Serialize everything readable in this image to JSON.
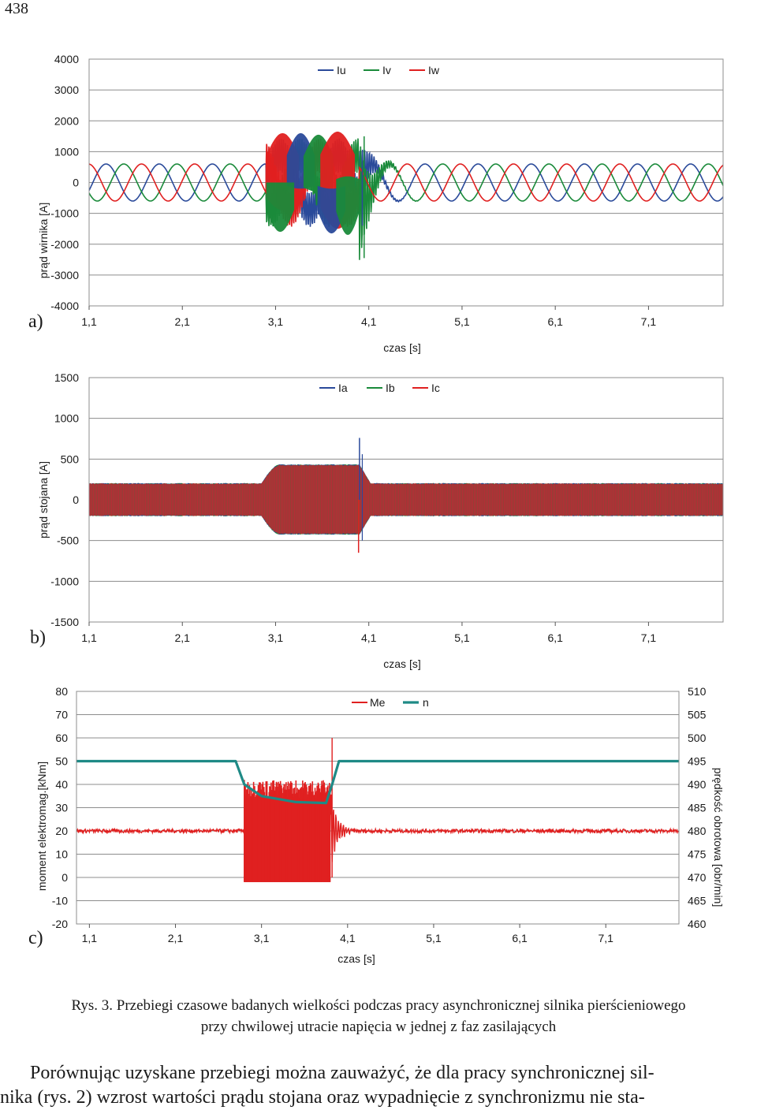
{
  "page_number": "438",
  "panel_labels": [
    "a)",
    "b)",
    "c)"
  ],
  "caption": {
    "line1": "Rys. 3. Przebiegi czasowe badanych wielkości podczas pracy asynchronicznej silnika pierścieniowego",
    "line2": "przy chwilowej utracie napięcia w jednej z faz zasilających"
  },
  "body_text": {
    "line1": "Porównując uzyskane przebiegi można zauważyć, że dla pracy synchronicznej sil-",
    "line2": "nika (rys. 2) wzrost wartości prądu stojana oraz wypadnięcie z synchronizmu nie sta-"
  },
  "chart_data": [
    {
      "type": "line",
      "id": "a",
      "xlabel": "czas [s]",
      "ylabel": "prąd wirnika [A]",
      "ylim": [
        -4000,
        4000
      ],
      "yticks": [
        "4000",
        "3000",
        "2000",
        "1000",
        "0",
        "-1000",
        "-2000",
        "-3000",
        "-4000"
      ],
      "xlim": [
        1.1,
        7.9
      ],
      "xticks": [
        "1,1",
        "2,1",
        "3,1",
        "4,1",
        "5,1",
        "6,1",
        "7,1"
      ],
      "grid": "horizontal",
      "legend": "top-center",
      "series": [
        {
          "name": "Iu",
          "color": "#2a4a9a",
          "phase_deg": 0
        },
        {
          "name": "Iv",
          "color": "#1a8a3a",
          "phase_deg": 120
        },
        {
          "name": "Iw",
          "color": "#e02020",
          "phase_deg": 240
        }
      ],
      "signal": {
        "steady_amplitude": 600,
        "period_s": 0.57,
        "disturbance_start": 3.0,
        "disturbance_end": 4.0,
        "disturbance_amplitude": 1600,
        "transient_peak": 1500,
        "transient_min": -2450
      }
    },
    {
      "type": "line",
      "id": "b",
      "xlabel": "czas [s]",
      "ylabel": "prąd stojana [A]",
      "ylim": [
        -1500,
        1500
      ],
      "yticks": [
        "1500",
        "1000",
        "500",
        "0",
        "-500",
        "-1000",
        "-1500"
      ],
      "xlim": [
        1.1,
        7.9
      ],
      "xticks": [
        "1,1",
        "2,1",
        "3,1",
        "4,1",
        "5,1",
        "6,1",
        "7,1"
      ],
      "grid": "horizontal",
      "legend": "top-center",
      "series": [
        {
          "name": "Ia",
          "color": "#2a4a9a"
        },
        {
          "name": "Ib",
          "color": "#1a8a3a"
        },
        {
          "name": "Ic",
          "color": "#e02020"
        }
      ],
      "signal": {
        "steady_amplitude": 200,
        "disturbance_start": 3.0,
        "disturbance_end": 4.0,
        "disturbance_amplitude": 430,
        "transient_peak": 760,
        "transient_min": -650
      }
    },
    {
      "type": "line",
      "id": "c",
      "xlabel": "czas [s]",
      "ylabel": "moment elektromag.[kNm]",
      "ylabel_right": "prędkość obrotowa [obr/min]",
      "ylim": [
        -20,
        80
      ],
      "ylim_right": [
        460,
        510
      ],
      "yticks": [
        "80",
        "70",
        "60",
        "50",
        "40",
        "30",
        "20",
        "10",
        "0",
        "-10",
        "-20"
      ],
      "yticks_right": [
        "510",
        "505",
        "500",
        "495",
        "490",
        "485",
        "480",
        "475",
        "470",
        "465",
        "460"
      ],
      "xlim": [
        0.95,
        7.95
      ],
      "xticks": [
        "1,1",
        "2,1",
        "3,1",
        "4,1",
        "5,1",
        "6,1",
        "7,1"
      ],
      "grid": "horizontal",
      "legend": "top-center",
      "series": [
        {
          "name": "Me",
          "color": "#e02020",
          "axis": "left",
          "steady": 20,
          "disturbed_min": -2,
          "disturbed_max": 42,
          "spike": 60
        },
        {
          "name": "n",
          "color": "#1f8a86",
          "axis": "right",
          "points": [
            [
              0.95,
              495.0
            ],
            [
              2.8,
              495.0
            ],
            [
              2.9,
              490.0
            ],
            [
              3.1,
              487.5
            ],
            [
              3.5,
              486.2
            ],
            [
              3.85,
              486.0
            ],
            [
              3.92,
              490.0
            ],
            [
              4.0,
              495.0
            ],
            [
              7.95,
              495.0
            ]
          ]
        }
      ],
      "signal": {
        "disturbance_start": 2.9,
        "disturbance_end": 3.9
      }
    }
  ]
}
